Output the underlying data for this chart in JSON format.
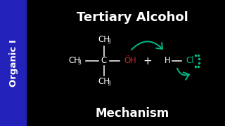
{
  "bg_color": "#000000",
  "sidebar_color": "#2222bb",
  "sidebar_text": "Organic I",
  "sidebar_text_color": "#ffffff",
  "title": "Tertiary Alcohol",
  "subtitle": "Mechanism",
  "title_color": "#ffffff",
  "molecule_color": "#ffffff",
  "oh_color": "#cc2222",
  "cl_color": "#00bb88",
  "figsize": [
    3.2,
    1.8
  ],
  "dpi": 100
}
